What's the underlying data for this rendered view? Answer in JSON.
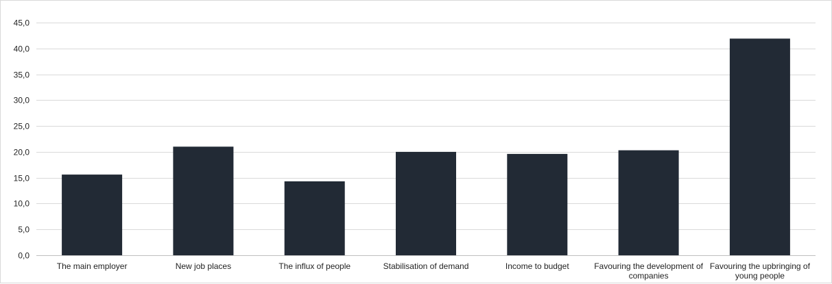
{
  "chart_data": {
    "type": "bar",
    "title": "",
    "xlabel": "",
    "ylabel": "",
    "categories": [
      "The main employer",
      "New job places",
      "The influx of people",
      "Stabilisation of demand",
      "Income to budget",
      "Favouring the development of companies",
      "Favouring the upbringing of young people"
    ],
    "category_label_lines": [
      [
        "The main employer"
      ],
      [
        "New job places"
      ],
      [
        "The influx of people"
      ],
      [
        "Stabilisation of demand"
      ],
      [
        "Income to budget"
      ],
      [
        "Favouring the development of",
        "companies"
      ],
      [
        "Favouring the upbringing of",
        "young people"
      ]
    ],
    "values": [
      15.6,
      21.0,
      14.3,
      20.0,
      19.6,
      20.3,
      41.9
    ],
    "ylim": [
      0,
      45
    ],
    "yticks": [
      0,
      5,
      10,
      15,
      20,
      25,
      30,
      35,
      40,
      45
    ],
    "ytick_labels": [
      "0,0",
      "5,0",
      "10,0",
      "15,0",
      "20,0",
      "25,0",
      "30,0",
      "35,0",
      "40,0",
      "45,0"
    ],
    "grid": true,
    "legend": "none",
    "colors": {
      "bar": "#222a35",
      "grid": "#d9d9d9",
      "axis": "#bfbfbf",
      "text": "#1f1f1f"
    }
  }
}
